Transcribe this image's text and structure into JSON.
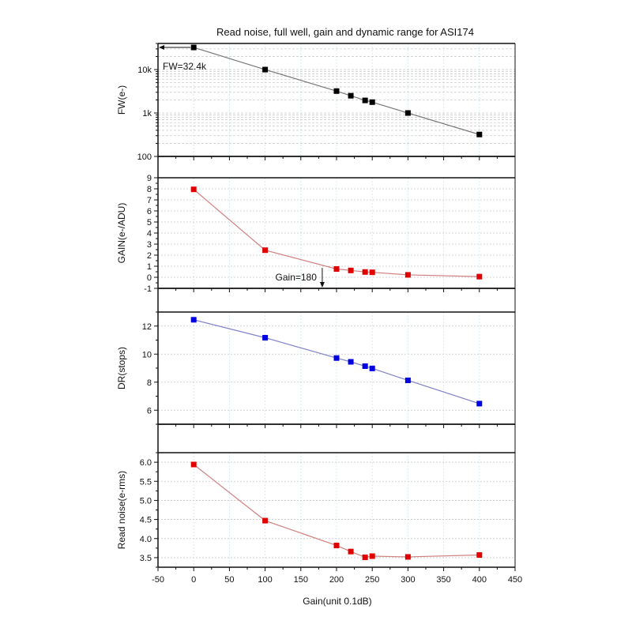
{
  "chart_data": {
    "type": "line",
    "title": "Read noise, full well, gain and dynamic range for ASI174",
    "xlabel": "Gain(unit 0.1dB)",
    "xlim": [
      -50,
      450
    ],
    "x_ticks": [
      -50,
      0,
      50,
      100,
      150,
      200,
      250,
      300,
      350,
      400,
      450
    ],
    "x_tick_labels": [
      "-50",
      "0",
      "50",
      "100",
      "150",
      "200",
      "250",
      "300",
      "350",
      "400",
      "450"
    ],
    "x": [
      0,
      100,
      200,
      220,
      240,
      250,
      300,
      400
    ],
    "grid": true,
    "panels": [
      {
        "id": "fw",
        "ylabel": "FW(e-)",
        "yscale": "log",
        "ylim": [
          100,
          40000
        ],
        "y_ticks": [
          100,
          1000,
          10000
        ],
        "y_tick_labels": [
          "100",
          "1k",
          "10k"
        ],
        "color": "#000000",
        "line_color": "#777777",
        "values": [
          32400,
          10000,
          3200,
          2500,
          1950,
          1780,
          1000,
          320
        ],
        "annotations": [
          {
            "text": "FW=32.4k",
            "arrow": "left",
            "x": 0,
            "y": 32400
          }
        ]
      },
      {
        "id": "gain",
        "ylabel": "GAIN(e-/ADU)",
        "yscale": "linear",
        "ylim": [
          -1,
          9
        ],
        "y_ticks": [
          -1,
          0,
          1,
          2,
          3,
          4,
          5,
          6,
          7,
          8,
          9
        ],
        "y_tick_labels": [
          "-1",
          "0",
          "1",
          "2",
          "3",
          "4",
          "5",
          "6",
          "7",
          "8",
          "9"
        ],
        "color": "#e00000",
        "line_color": "#d08080",
        "values": [
          7.95,
          2.45,
          0.75,
          0.62,
          0.48,
          0.45,
          0.22,
          0.06
        ],
        "annotations": [
          {
            "text": "Gain=180",
            "arrow": "down",
            "x": 180
          }
        ]
      },
      {
        "id": "dr",
        "ylabel": "DR(stops)",
        "yscale": "linear",
        "ylim": [
          5,
          13
        ],
        "y_ticks": [
          6,
          8,
          10,
          12
        ],
        "y_tick_labels": [
          "6",
          "8",
          "10",
          "12"
        ],
        "color": "#0000e0",
        "line_color": "#8080c8",
        "values": [
          12.45,
          11.17,
          9.72,
          9.45,
          9.14,
          8.98,
          8.13,
          6.47
        ],
        "annotations": []
      },
      {
        "id": "rn",
        "ylabel": "Read noise(e-rms)",
        "yscale": "linear",
        "ylim": [
          3.25,
          6.25
        ],
        "y_ticks": [
          3.5,
          4.0,
          4.5,
          5.0,
          5.5,
          6.0
        ],
        "y_tick_labels": [
          "3.5",
          "4.0",
          "4.5",
          "5.0",
          "5.5",
          "6.0"
        ],
        "color": "#e00000",
        "line_color": "#d08080",
        "values": [
          5.94,
          4.47,
          3.82,
          3.66,
          3.51,
          3.54,
          3.52,
          3.57
        ],
        "annotations": []
      }
    ]
  }
}
